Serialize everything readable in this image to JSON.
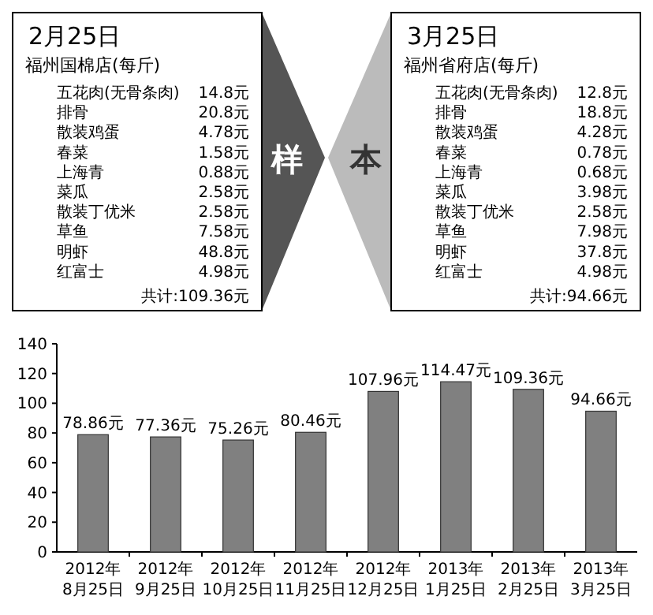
{
  "chart_data": [
    {
      "type": "other",
      "title": "2月25日",
      "subtitle": "福州国棉店(每斤)",
      "annotations": [
        "五花肉(无骨条肉)",
        "14.8元",
        "排骨",
        "20.8元",
        "散装鸡蛋",
        "4.78元",
        "春菜",
        "1.58元",
        "上海青",
        "0.88元",
        "菜瓜",
        "2.58元",
        "散装丁优米",
        "2.58元",
        "草鱼",
        "7.58元",
        "明虾",
        "48.8元",
        "红富士",
        "4.98元",
        "共计:109.36元",
        "样"
      ]
    },
    {
      "type": "other",
      "title": "3月25日",
      "subtitle": "福州省府店(每斤)",
      "annotations": [
        "五花肉(无骨条肉)",
        "12.8元",
        "排骨",
        "18.8元",
        "散装鸡蛋",
        "4.28元",
        "春菜",
        "0.78元",
        "上海青",
        "0.68元",
        "菜瓜",
        "3.98元",
        "散装丁优米",
        "2.58元",
        "草鱼",
        "7.98元",
        "明虾",
        "37.8元",
        "红富士",
        "4.98元",
        "共计:94.66元",
        "本"
      ]
    },
    {
      "type": "bar",
      "categories": [
        "2012年8月25日",
        "2012年9月25日",
        "2012年10月25日",
        "2012年11月25日",
        "2012年12月25日",
        "2013年1月25日",
        "2013年2月25日",
        "2013年3月25日"
      ],
      "values": [
        78.86,
        77.36,
        75.26,
        80.46,
        107.96,
        114.47,
        109.36,
        94.66
      ],
      "value_labels": [
        "78.86元",
        "77.36元",
        "75.26元",
        "80.46元",
        "107.96元",
        "114.47元",
        "109.36元",
        "94.66元"
      ],
      "color": "#808080",
      "ylim": [
        0,
        140
      ],
      "yticks": [
        0,
        20,
        40,
        60,
        80,
        100,
        120,
        140
      ]
    }
  ]
}
